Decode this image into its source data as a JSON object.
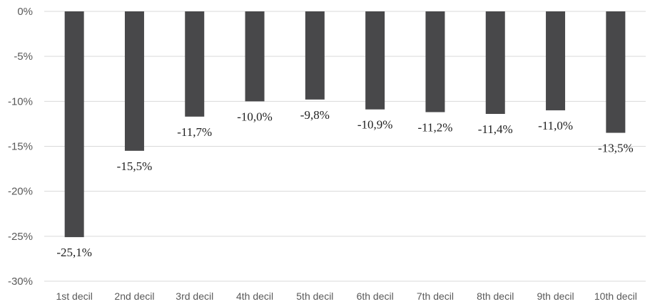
{
  "chart_data": {
    "type": "bar",
    "categories": [
      "1st decil",
      "2nd decil",
      "3rd decil",
      "4th decil",
      "5th decil",
      "6th decil",
      "7th decil",
      "8th decil",
      "9th decil",
      "10th decil"
    ],
    "values": [
      -25.1,
      -15.5,
      -11.7,
      -10.0,
      -9.8,
      -10.9,
      -11.2,
      -11.4,
      -11.0,
      -13.5
    ],
    "data_labels": [
      "-25,1%",
      "-15,5%",
      "-11,7%",
      "-10,0%",
      "-9,8%",
      "-10,9%",
      "-11,2%",
      "-11,4%",
      "-11,0%",
      "-13,5%"
    ],
    "y_ticks": [
      0,
      -5,
      -10,
      -15,
      -20,
      -25,
      -30
    ],
    "y_tick_labels": [
      "0%",
      "-5%",
      "-10%",
      "-15%",
      "-20%",
      "-25%",
      "-30%"
    ],
    "ylim": [
      -30,
      0
    ],
    "grid": true,
    "bar_color": "#48484a",
    "gridline_color": "#d9d9d9",
    "legend": "none"
  }
}
